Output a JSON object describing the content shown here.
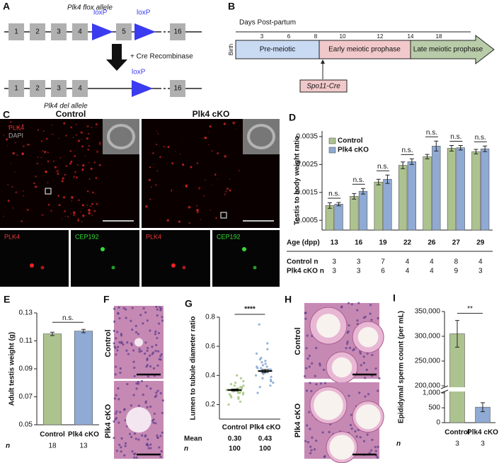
{
  "panels": {
    "A": {
      "letter": "A",
      "flox_title": "Plk4 flox allele",
      "flox_exons": [
        "1",
        "2",
        "3",
        "4",
        "5",
        "16"
      ],
      "loxp": "loxP",
      "cre": "+ Cre Recombinase",
      "del_title": "Plk4 del allele",
      "del_exons": [
        "1",
        "2",
        "3",
        "4",
        "16"
      ]
    },
    "B": {
      "letter": "B",
      "axis_title": "Days Post-partum",
      "days": [
        "3",
        "6",
        "8",
        "10",
        "12",
        "14",
        "18"
      ],
      "birth": "Birth",
      "stages": [
        "Pre-meiotic",
        "Early meiotic prophase",
        "Late meiotic prophase"
      ],
      "driver": "Spo11-Cre"
    },
    "C": {
      "letter": "C",
      "control": "Control",
      "cko": "Plk4 cKO",
      "plk4": "PLK4",
      "dapi": "DAPI",
      "cep192": "CEP192"
    },
    "F": {
      "letter": "F",
      "control": "Control",
      "cko": "Plk4 cKO"
    },
    "H": {
      "letter": "H",
      "control": "Control",
      "cko": "Plk4 cKO"
    }
  },
  "chart_data": [
    {
      "type": "bar",
      "letter": "D",
      "ylabel": "Testis to body weight ratio",
      "xlabel": "Age (dpp)",
      "categories": [
        "13",
        "16",
        "19",
        "22",
        "26",
        "27",
        "29"
      ],
      "series": [
        {
          "name": "Control",
          "color": "#adc38f",
          "values": [
            0.00103,
            0.00136,
            0.00187,
            0.00247,
            0.00278,
            0.00308,
            0.00296
          ],
          "errors": [
            0.0001,
            0.0001,
            0.0001,
            0.00012,
            8e-05,
            0.0001,
            8e-05
          ]
        },
        {
          "name": "Plk4 cKO",
          "color": "#8faad3",
          "values": [
            0.00108,
            0.00154,
            0.00197,
            0.0026,
            0.00316,
            0.0031,
            0.00306
          ],
          "errors": [
            6e-05,
            0.0001,
            0.00015,
            0.0001,
            0.00018,
            8e-05,
            0.0001
          ]
        }
      ],
      "annotations": [
        "n.s.",
        "n.s.",
        "n.s.",
        "n.s.",
        "n.s.",
        "n.s.",
        "n.s."
      ],
      "n_rows": [
        {
          "label": "Control n",
          "values": [
            3,
            3,
            7,
            4,
            4,
            8,
            4
          ]
        },
        {
          "label": "Plk4 cKO n",
          "values": [
            3,
            3,
            6,
            4,
            4,
            9,
            3
          ]
        }
      ],
      "ylim": [
        0.00015,
        0.0037
      ],
      "yticks": [
        0.0005,
        0.0015,
        0.0025,
        0.0035
      ],
      "legend": "top-left"
    },
    {
      "type": "bar",
      "letter": "E",
      "ylabel": "Adult testis weight (g)",
      "categories": [
        "Control",
        "Plk4 cKO"
      ],
      "values": [
        0.115,
        0.117
      ],
      "errors": [
        0.0012,
        0.0012
      ],
      "colors": [
        "#adc38f",
        "#8faad3"
      ],
      "annotations": [
        "n.s."
      ],
      "n_rows": [
        {
          "label": "n",
          "values": [
            18,
            13
          ]
        }
      ],
      "ylim": [
        0.05,
        0.13
      ],
      "yticks": [
        0.05,
        0.07,
        0.09,
        0.11,
        0.13
      ]
    },
    {
      "type": "strip",
      "letter": "G",
      "ylabel": "Lumen to tubule diameter ratio",
      "categories": [
        "Control",
        "Plk4 cKO"
      ],
      "colors": [
        "#9cc27a",
        "#7aa0d0"
      ],
      "points": [
        [
          0.22,
          0.25,
          0.27,
          0.28,
          0.29,
          0.3,
          0.31,
          0.32,
          0.26,
          0.3,
          0.33,
          0.35,
          0.24,
          0.28,
          0.3,
          0.31,
          0.36,
          0.38,
          0.2,
          0.27,
          0.29,
          0.32,
          0.34,
          0.3,
          0.28,
          0.25,
          0.31,
          0.33,
          0.29,
          0.4
        ],
        [
          0.28,
          0.32,
          0.35,
          0.38,
          0.4,
          0.42,
          0.43,
          0.44,
          0.45,
          0.46,
          0.48,
          0.5,
          0.52,
          0.55,
          0.41,
          0.39,
          0.37,
          0.44,
          0.47,
          0.49,
          0.36,
          0.42,
          0.45,
          0.51,
          0.58,
          0.62,
          0.33,
          0.43,
          0.46,
          0.75
        ]
      ],
      "means": [
        0.3,
        0.43
      ],
      "mean_labels": [
        "0.30",
        "0.43"
      ],
      "errors": [
        0.006,
        0.01
      ],
      "annotations": [
        "****"
      ],
      "mean_title": "Mean",
      "n_title": "n",
      "n": [
        100,
        100
      ],
      "ylim": [
        0.1,
        0.8
      ],
      "yticks": [
        0.2,
        0.4,
        0.6,
        0.8
      ]
    },
    {
      "type": "bar",
      "letter": "I",
      "ylabel": "Epididymal sperm count (per mL)",
      "categories": [
        "Control",
        "Plk4 cKO"
      ],
      "values": [
        305000,
        520
      ],
      "errors": [
        27000,
        150
      ],
      "colors": [
        "#adc38f",
        "#8faad3"
      ],
      "annotations": [
        "**"
      ],
      "n_rows": [
        {
          "label": "n",
          "values": [
            3,
            3
          ]
        }
      ],
      "ylim": [
        0,
        350000
      ],
      "ybreak": [
        1000,
        200000
      ],
      "yticks": [
        0,
        500,
        {
          "value": 1000,
          "label": "1,000"
        },
        {
          "value": 200000,
          "label": "200,000"
        },
        {
          "value": 250000,
          "label": "250,000"
        },
        {
          "value": 300000,
          "label": "300,000"
        },
        {
          "value": 350000,
          "label": "350,000"
        }
      ]
    }
  ]
}
